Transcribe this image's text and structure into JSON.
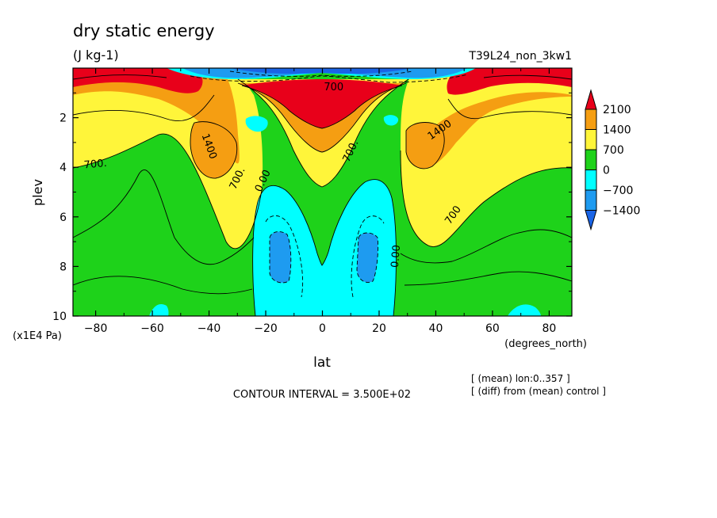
{
  "chart_data": {
    "type": "contour",
    "title": "dry static energy",
    "units": "(J kg-1)",
    "run_label": "T39L24_non_3kw1",
    "xlabel": "lat",
    "xunits": "(degrees_north)",
    "ylabel": "plev",
    "yunits": "(x1E4 Pa)",
    "xlim": [
      -88,
      88
    ],
    "ylim": [
      10,
      0
    ],
    "x_ticks": [
      -80,
      -60,
      -40,
      -20,
      0,
      20,
      40,
      60,
      80
    ],
    "y_ticks": [
      2,
      4,
      6,
      8,
      10
    ],
    "colorbar": {
      "levels": [
        -1400,
        -700,
        0,
        700,
        1400,
        2100
      ],
      "labels": [
        "2100",
        "1400",
        "700",
        "0",
        "−700",
        "−1400"
      ],
      "colors": [
        "#e8001a",
        "#f59e12",
        "#fff53a",
        "#1ed21a",
        "#00ffff",
        "#1e9bf0",
        "#1a64e6"
      ]
    },
    "contour_labels": [
      {
        "text": "1400",
        "x": -41,
        "y": 3.2,
        "rotate": 70
      },
      {
        "text": "700.",
        "x": -80,
        "y": 4.0,
        "rotate": -5
      },
      {
        "text": "700.",
        "x": -29,
        "y": 4.5,
        "rotate": -65
      },
      {
        "text": "0.00",
        "x": -20,
        "y": 4.6,
        "rotate": -65
      },
      {
        "text": "700.",
        "x": 11,
        "y": 3.4,
        "rotate": -65
      },
      {
        "text": "1400",
        "x": 42,
        "y": 2.6,
        "rotate": -35
      },
      {
        "text": "700",
        "x": 47,
        "y": 6.0,
        "rotate": -55
      },
      {
        "text": "0.00",
        "x": 27,
        "y": 7.6,
        "rotate": -85
      },
      {
        "text": "700",
        "x": 4,
        "y": 0.9,
        "rotate": 0
      }
    ],
    "contour_interval_text": "CONTOUR INTERVAL = 3.500E+02",
    "notes": [
      "[ (mean) lon:0..357 ]",
      "[ (diff) from (mean) control ]"
    ]
  }
}
